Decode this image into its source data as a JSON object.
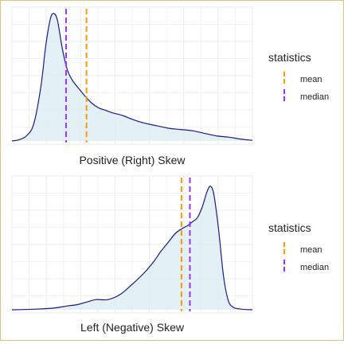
{
  "chart_data": [
    {
      "type": "area",
      "title": "",
      "xlabel": "Positive (Right) Skew",
      "ylabel": "",
      "xlim": [
        0,
        100
      ],
      "ylim": [
        0,
        1
      ],
      "grid": true,
      "legend_placement": "right",
      "fill_color": "#deedf4",
      "line_color": "#1a1a8c",
      "curve": {
        "x": [
          0,
          3,
          6,
          9,
          12,
          14,
          16,
          17.5,
          19,
          21,
          23,
          25,
          27,
          30,
          33,
          36,
          39,
          42,
          46,
          50,
          55,
          60,
          65,
          70,
          75,
          80,
          85,
          90,
          95,
          100
        ],
        "y": [
          0,
          0.01,
          0.04,
          0.13,
          0.42,
          0.74,
          0.96,
          1.0,
          0.94,
          0.72,
          0.56,
          0.48,
          0.43,
          0.36,
          0.3,
          0.26,
          0.24,
          0.22,
          0.2,
          0.17,
          0.14,
          0.12,
          0.1,
          0.09,
          0.08,
          0.06,
          0.04,
          0.03,
          0.015,
          0.005
        ]
      },
      "reference_lines": [
        {
          "stat": "mean",
          "x": 31,
          "color": "#ff9900"
        },
        {
          "stat": "median",
          "x": 22.5,
          "color": "#9933ff"
        }
      ],
      "legend": {
        "title": "statistics",
        "items": [
          {
            "label": "mean",
            "color": "#ff9900"
          },
          {
            "label": "median",
            "color": "#9933ff"
          }
        ]
      }
    },
    {
      "type": "area",
      "title": "",
      "xlabel": "Left (Negative) Skew",
      "ylabel": "",
      "xlim": [
        0,
        100
      ],
      "ylim": [
        0,
        1
      ],
      "grid": true,
      "legend_placement": "right",
      "fill_color": "#deedf4",
      "line_color": "#1a1a8c",
      "curve": {
        "x": [
          0,
          10,
          18,
          23,
          27,
          31,
          35,
          40,
          45,
          50,
          55,
          59,
          62,
          65,
          68,
          71,
          73,
          75,
          77,
          79,
          81,
          82.5,
          84,
          86,
          88,
          90,
          92,
          94,
          97,
          100
        ],
        "y": [
          0,
          0.005,
          0.015,
          0.03,
          0.04,
          0.06,
          0.08,
          0.08,
          0.12,
          0.2,
          0.29,
          0.38,
          0.46,
          0.53,
          0.6,
          0.64,
          0.66,
          0.69,
          0.72,
          0.8,
          0.92,
          0.97,
          0.9,
          0.62,
          0.26,
          0.07,
          0.02,
          0.008,
          0.002,
          0
        ]
      },
      "reference_lines": [
        {
          "stat": "mean",
          "x": 70.5,
          "color": "#ff9900"
        },
        {
          "stat": "median",
          "x": 74,
          "color": "#9933ff"
        }
      ],
      "legend": {
        "title": "statistics",
        "items": [
          {
            "label": "mean",
            "color": "#ff9900"
          },
          {
            "label": "median",
            "color": "#9933ff"
          }
        ]
      }
    }
  ]
}
